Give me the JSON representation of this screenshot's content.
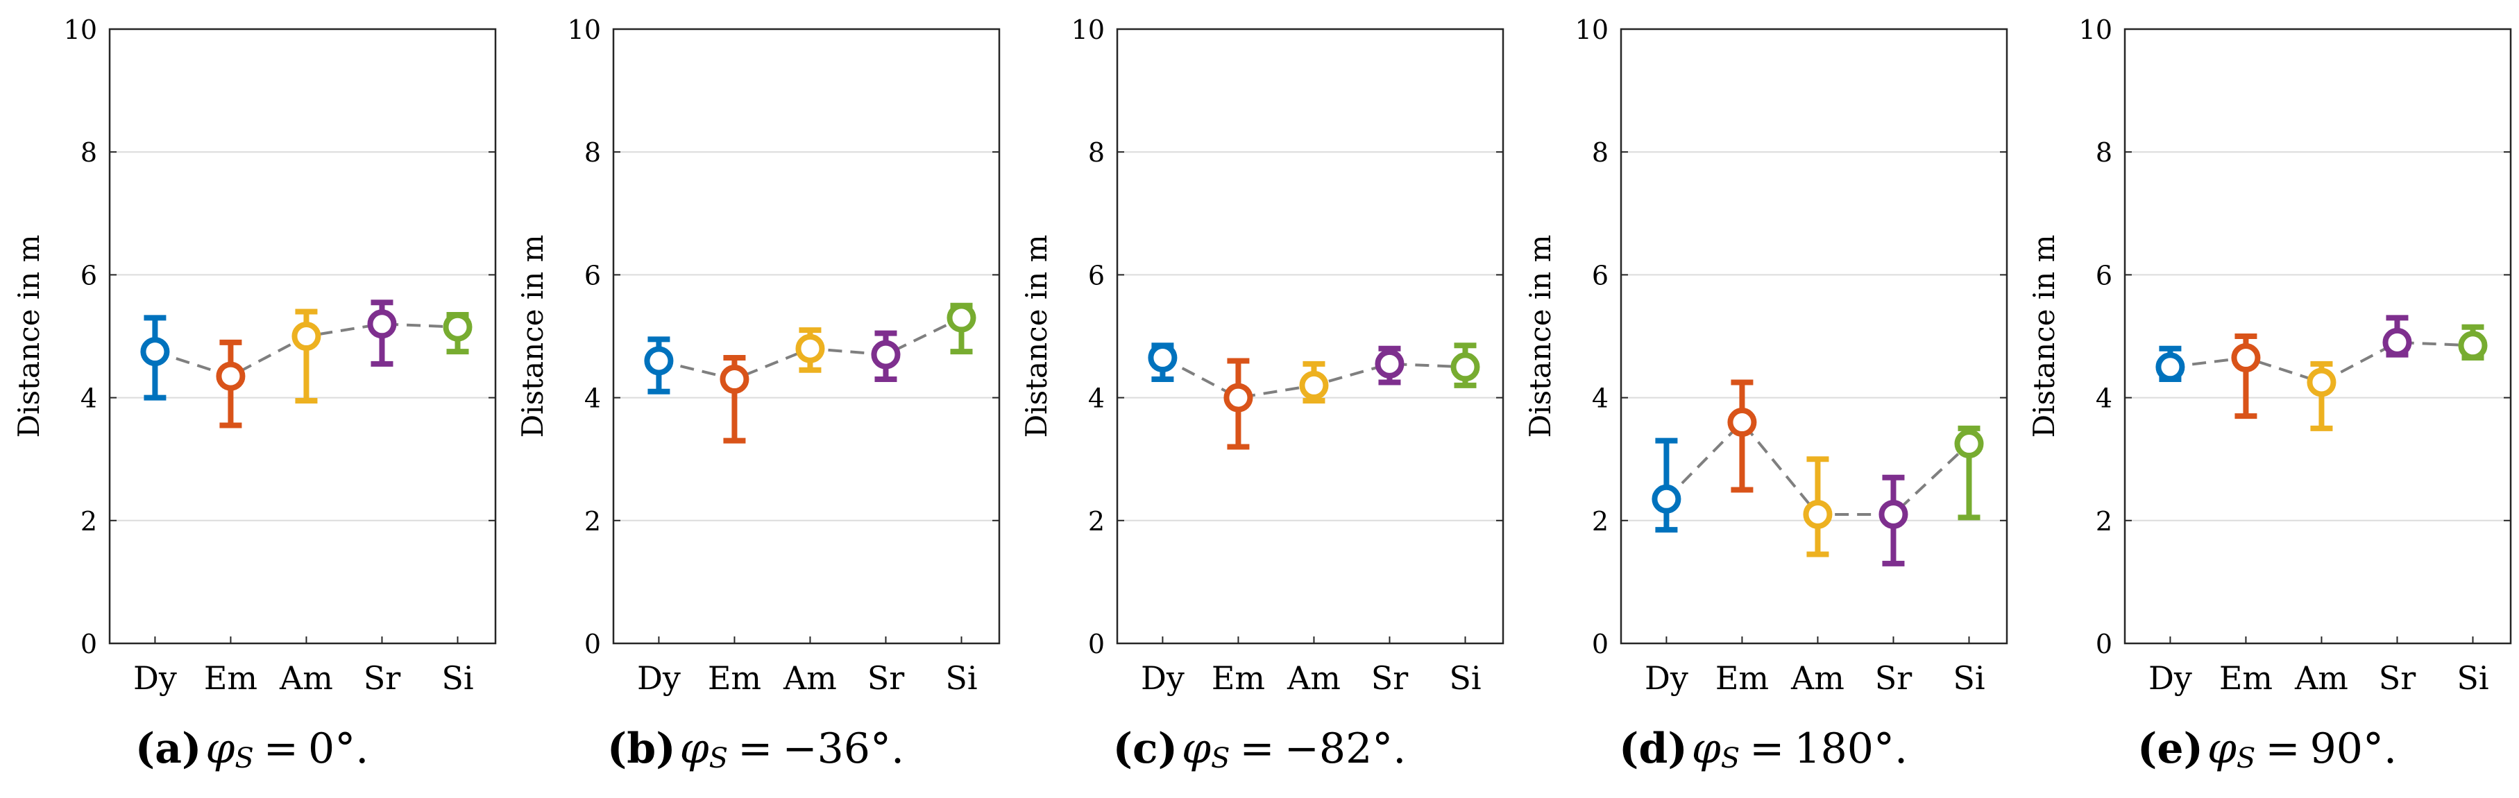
{
  "figure": {
    "ylabel": "Distance in m",
    "categories": [
      "Dy",
      "Em",
      "Am",
      "Sr",
      "Si"
    ],
    "yticks": [
      "0",
      "2",
      "4",
      "6",
      "8",
      "10"
    ],
    "category_colors": [
      "#0072BD",
      "#D95319",
      "#EDB120",
      "#7E2F8E",
      "#77AC30"
    ],
    "connector_color": "#7f7f7f",
    "grid_color": "#dcdcdc",
    "axis_color": "#262626"
  },
  "chart_data": [
    {
      "type": "errorbar",
      "panel": "a",
      "caption": {
        "letter": "(a)",
        "symbol": "φ",
        "subscript": "S",
        "relation": "=",
        "value": "0°."
      },
      "categories": [
        "Dy",
        "Em",
        "Am",
        "Sr",
        "Si"
      ],
      "values": [
        4.75,
        4.35,
        5.0,
        5.2,
        5.15
      ],
      "err_low": [
        4.0,
        3.55,
        3.95,
        4.55,
        4.75
      ],
      "err_high": [
        5.3,
        4.9,
        5.4,
        5.55,
        5.35
      ],
      "ylabel": "Distance in m",
      "ylim": [
        0,
        10
      ],
      "grid": true
    },
    {
      "type": "errorbar",
      "panel": "b",
      "caption": {
        "letter": "(b)",
        "symbol": "φ",
        "subscript": "S",
        "relation": "=",
        "value": "−36°."
      },
      "categories": [
        "Dy",
        "Em",
        "Am",
        "Sr",
        "Si"
      ],
      "values": [
        4.6,
        4.3,
        4.8,
        4.7,
        5.3
      ],
      "err_low": [
        4.1,
        3.3,
        4.45,
        4.3,
        4.75
      ],
      "err_high": [
        4.95,
        4.65,
        5.1,
        5.05,
        5.5
      ],
      "ylabel": "Distance in m",
      "ylim": [
        0,
        10
      ],
      "grid": true
    },
    {
      "type": "errorbar",
      "panel": "c",
      "caption": {
        "letter": "(c)",
        "symbol": "φ",
        "subscript": "S",
        "relation": "=",
        "value": "−82°."
      },
      "categories": [
        "Dy",
        "Em",
        "Am",
        "Sr",
        "Si"
      ],
      "values": [
        4.65,
        4.0,
        4.2,
        4.55,
        4.5
      ],
      "err_low": [
        4.3,
        3.2,
        3.95,
        4.25,
        4.2
      ],
      "err_high": [
        4.85,
        4.6,
        4.55,
        4.8,
        4.85
      ],
      "ylabel": "Distance in m",
      "ylim": [
        0,
        10
      ],
      "grid": true
    },
    {
      "type": "errorbar",
      "panel": "d",
      "caption": {
        "letter": "(d)",
        "symbol": "φ",
        "subscript": "S",
        "relation": "=",
        "value": "180°."
      },
      "categories": [
        "Dy",
        "Em",
        "Am",
        "Sr",
        "Si"
      ],
      "values": [
        2.35,
        3.6,
        2.1,
        2.1,
        3.25
      ],
      "err_low": [
        1.85,
        2.5,
        1.45,
        1.3,
        2.05
      ],
      "err_high": [
        3.3,
        4.25,
        3.0,
        2.7,
        3.5
      ],
      "ylabel": "Distance in m",
      "ylim": [
        0,
        10
      ],
      "grid": true
    },
    {
      "type": "errorbar",
      "panel": "e",
      "caption": {
        "letter": "(e)",
        "symbol": "φ",
        "subscript": "S",
        "relation": "=",
        "value": "90°."
      },
      "categories": [
        "Dy",
        "Em",
        "Am",
        "Sr",
        "Si"
      ],
      "values": [
        4.5,
        4.65,
        4.25,
        4.9,
        4.85
      ],
      "err_low": [
        4.3,
        3.7,
        3.5,
        4.7,
        4.65
      ],
      "err_high": [
        4.8,
        5.0,
        4.55,
        5.3,
        5.15
      ],
      "ylabel": "Distance in m",
      "ylim": [
        0,
        10
      ],
      "grid": true
    }
  ]
}
